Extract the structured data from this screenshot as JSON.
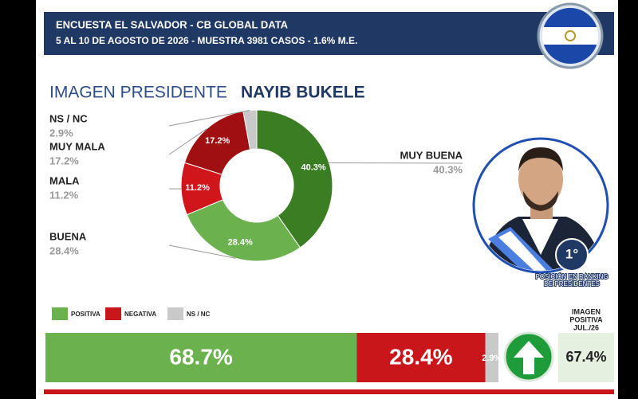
{
  "header": {
    "title": "ENCUESTA EL SALVADOR - CB GLOBAL DATA",
    "subtitle": "5 AL 10 DE AGOSTO DE 2026 - MUESTRA 3981 CASOS - 1.6% M.E."
  },
  "chart_data": [
    {
      "type": "donut",
      "title": "IMAGEN PRESIDENTE",
      "subtitle": "NAYIB BUKELE",
      "categories": [
        "MUY BUENA",
        "BUENA",
        "MALA",
        "MUY MALA",
        "NS / NC"
      ],
      "values": [
        40.3,
        28.4,
        11.2,
        17.2,
        2.9
      ],
      "value_labels": [
        "40.3%",
        "28.4%",
        "11.2%",
        "17.2%",
        "2.9%"
      ],
      "colors": [
        "#3b7d23",
        "#6bb24e",
        "#d0161b",
        "#a01012",
        "#c9c9c9"
      ]
    },
    {
      "type": "stacked-bar",
      "xlim": [
        0,
        100
      ],
      "series": [
        {
          "name": "POSITIVA",
          "color": "#6bb24e",
          "values": [
            68.7
          ],
          "value_labels": [
            "68.7%"
          ]
        },
        {
          "name": "NEGATIVA",
          "color": "#c8161b",
          "values": [
            28.4
          ],
          "value_labels": [
            "28.4%"
          ]
        },
        {
          "name": "NS / NC",
          "color": "#c9c9c9",
          "values": [
            2.9
          ],
          "value_labels": [
            "2.9%"
          ]
        }
      ]
    }
  ],
  "ranking": {
    "position": "1°",
    "caption": [
      "POSICIÓN EN RANKING",
      "DE PRESIDENTES"
    ]
  },
  "comparison": {
    "label": [
      "IMAGEN",
      "POSITIVA",
      "JUL./26"
    ],
    "value_label": "67.4%"
  }
}
